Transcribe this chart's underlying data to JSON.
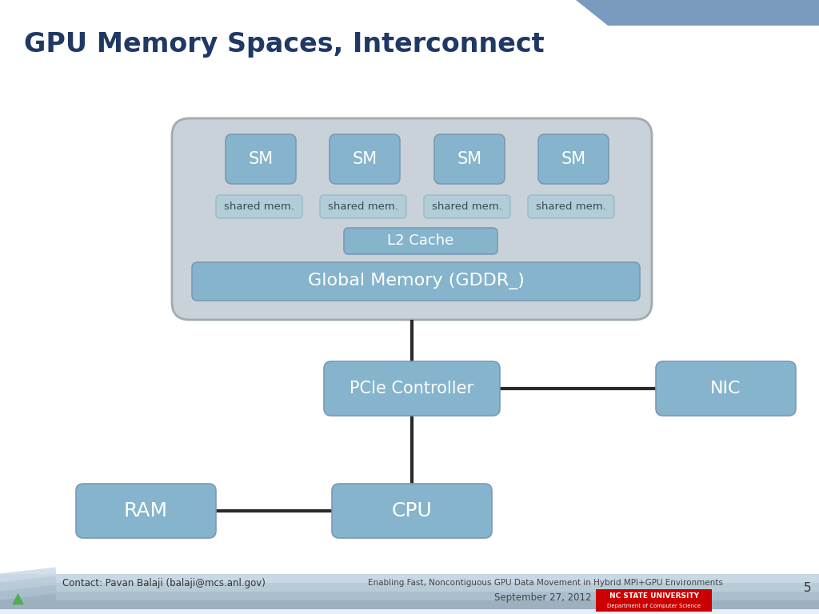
{
  "title": "GPU Memory Spaces, Interconnect",
  "title_color": "#1F3864",
  "title_fontsize": 24,
  "bg_color": "#FFFFFF",
  "sm_fill": "#85B4CC",
  "shared_fill": "#B0CDD8",
  "l2_fill": "#85B4CC",
  "global_fill": "#85B4CC",
  "pcie_fill": "#85B4CC",
  "nic_fill": "#85B4CC",
  "ram_fill": "#85B4CC",
  "cpu_fill": "#85B4CC",
  "gpu_container_fill": "#C8D2D8",
  "gpu_container_edge": "#A0AAAF",
  "box_edge": "#7A9AB8",
  "shared_edge": "#9ABBC8",
  "line_color": "#2A2A2A",
  "top_bar_color": "#7A9BBF",
  "footer_stripe_color": "#C8D8E4",
  "footer_text1": "Contact: Pavan Balaji (balaji@mcs.anl.gov)",
  "footer_text2": "Enabling Fast, Noncontiguous GPU Data Movement in Hybrid MPI+GPU Environments",
  "footer_date": "September 27, 2012",
  "page_num": "5",
  "nc_state_red": "#CC0000",
  "nc_state_line1": "NC STATE UNIVERSITY",
  "nc_state_line2": "Department of Computer Science"
}
